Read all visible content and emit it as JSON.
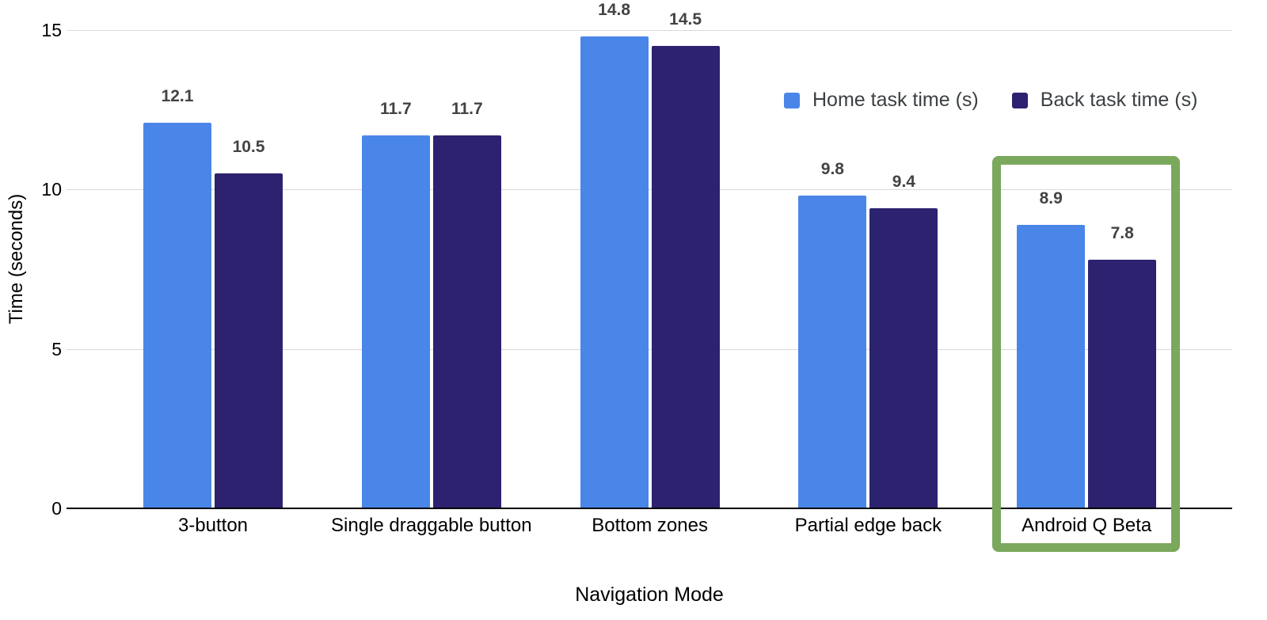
{
  "chart_data": {
    "type": "bar",
    "title": "",
    "xlabel": "Navigation Mode",
    "ylabel": "Time (seconds)",
    "categories": [
      "3-button",
      "Single draggable button",
      "Bottom zones",
      "Partial edge back",
      "Android Q Beta"
    ],
    "series": [
      {
        "name": "Home task time (s)",
        "color": "#4a86e8",
        "values": [
          12.1,
          11.7,
          14.8,
          9.8,
          8.9
        ]
      },
      {
        "name": "Back task time (s)",
        "color": "#2c2270",
        "values": [
          10.5,
          11.7,
          14.5,
          9.4,
          7.8
        ]
      }
    ],
    "yticks": [
      0,
      5,
      10,
      15
    ],
    "ylim": [
      0,
      15.5
    ],
    "grid": true,
    "legend_position": "top-right",
    "value_labels_decimals": 1,
    "annotation": {
      "type": "highlight-box",
      "category": "Android Q Beta",
      "color": "#7aa85c"
    }
  },
  "colors": {
    "gridline": "#d9d9d9",
    "axis_baseline": "#000000",
    "value_label": "#434343",
    "legend_text": "#3c4043",
    "axis_text": "#000000",
    "highlight_green": "#7aa85c",
    "series_home": "#4a86e8",
    "series_back": "#2c2270"
  }
}
